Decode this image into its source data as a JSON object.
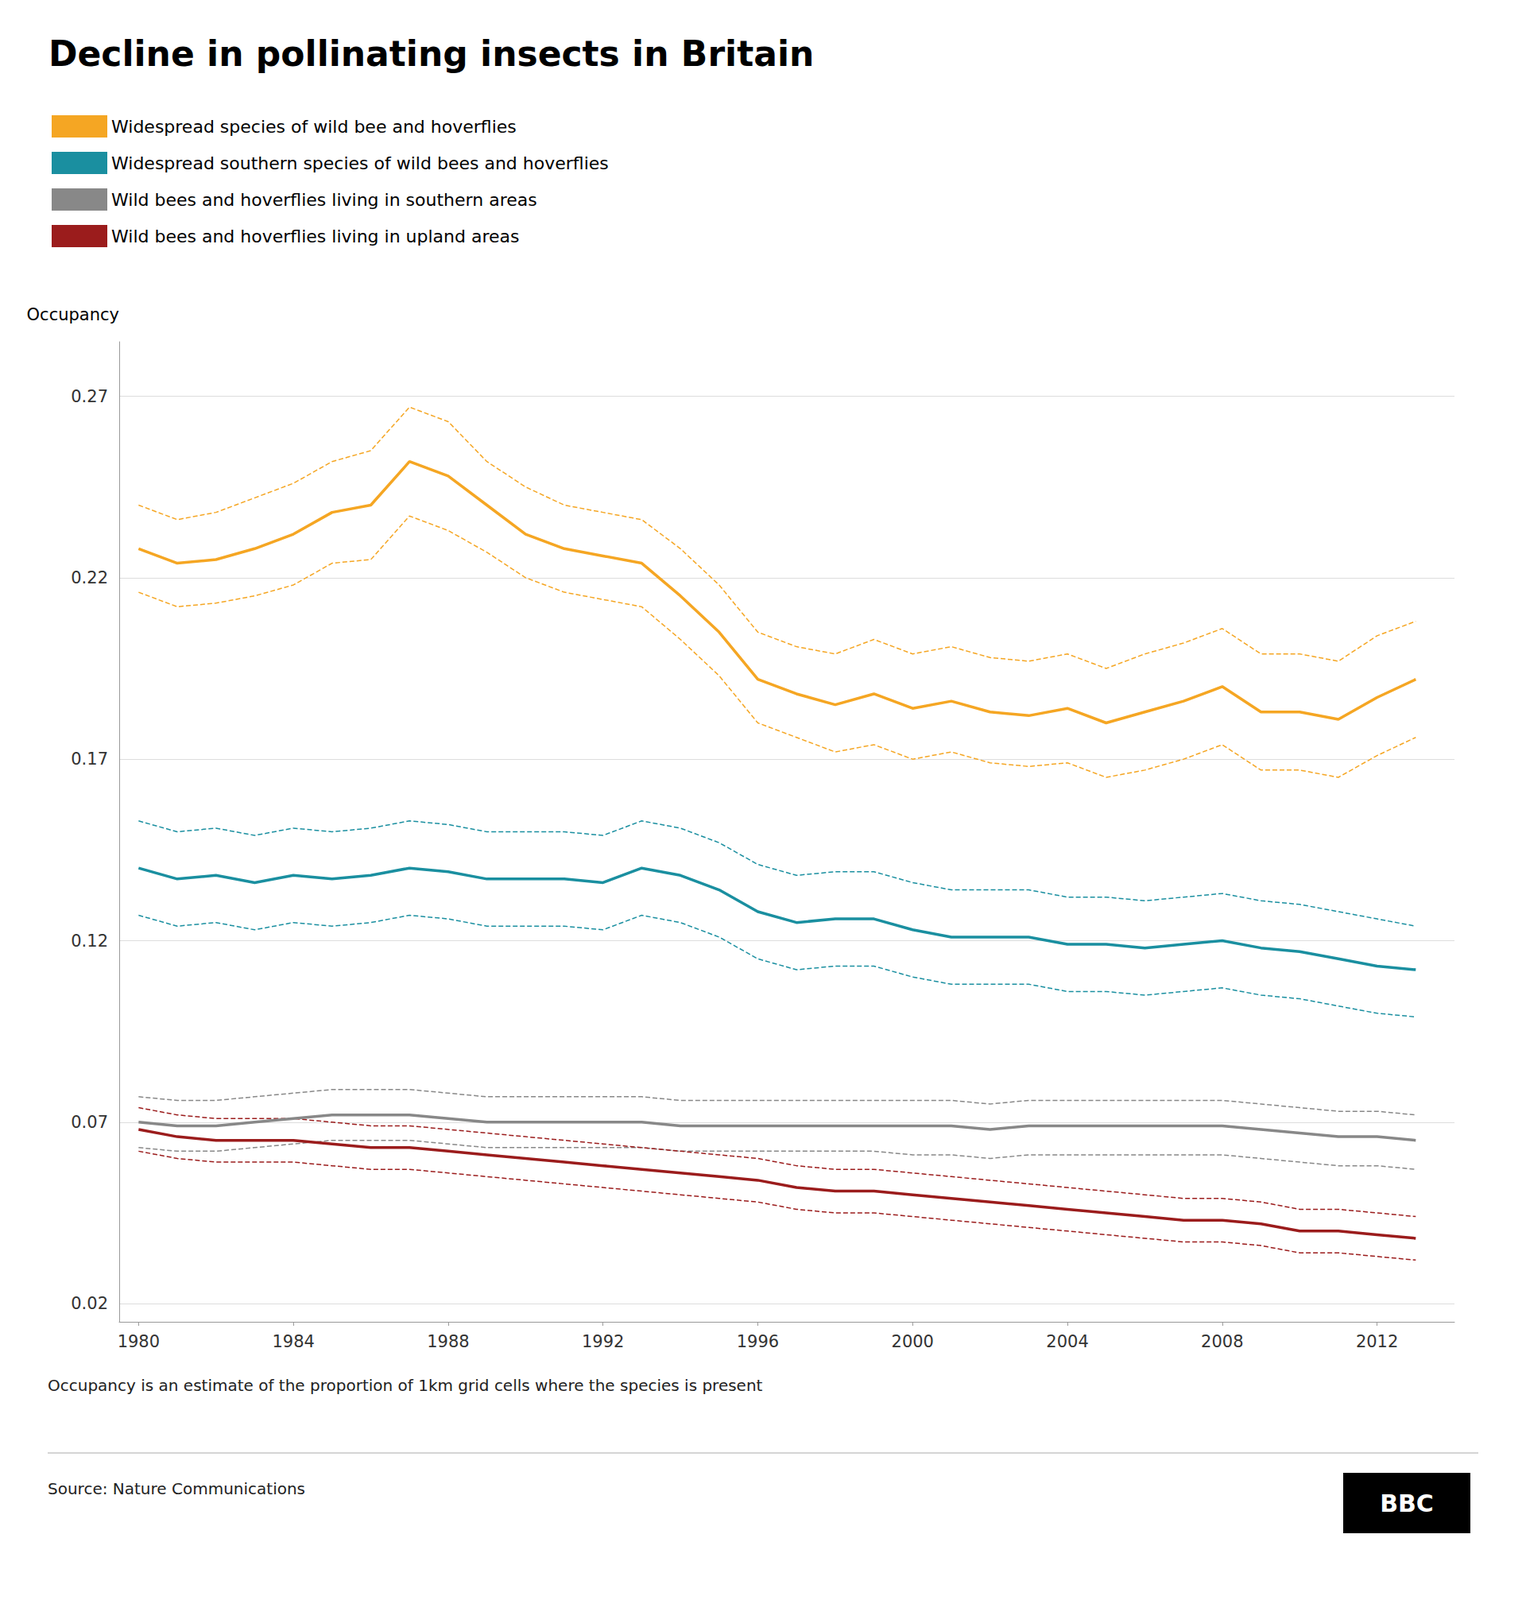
{
  "chart_data": {
    "type": "line",
    "title": "Decline in pollinating insects in Britain",
    "ylabel": "Occupancy",
    "x": [
      1980,
      1981,
      1982,
      1983,
      1984,
      1985,
      1986,
      1987,
      1988,
      1989,
      1990,
      1991,
      1992,
      1993,
      1994,
      1995,
      1996,
      1997,
      1998,
      1999,
      2000,
      2001,
      2002,
      2003,
      2004,
      2005,
      2006,
      2007,
      2008,
      2009,
      2010,
      2011,
      2012,
      2013
    ],
    "xlim": [
      1979.5,
      2014.0
    ],
    "xticks": [
      1980,
      1984,
      1988,
      1992,
      1996,
      2000,
      2004,
      2008,
      2012
    ],
    "ylim": [
      0.015,
      0.285
    ],
    "yticks": [
      0.02,
      0.07,
      0.12,
      0.17,
      0.22,
      0.27
    ],
    "grid": true,
    "legend": "top-left",
    "series": [
      {
        "name": "Widespread species of wild bee and hoverflies",
        "color": "#F5A623",
        "values": [
          0.228,
          0.224,
          0.225,
          0.228,
          0.232,
          0.238,
          0.24,
          0.252,
          0.248,
          0.24,
          0.232,
          0.228,
          0.226,
          0.224,
          0.215,
          0.205,
          0.192,
          0.188,
          0.185,
          0.188,
          0.184,
          0.186,
          0.183,
          0.182,
          0.184,
          0.18,
          0.183,
          0.186,
          0.19,
          0.183,
          0.183,
          0.181,
          0.187,
          0.192
        ],
        "upper": [
          0.24,
          0.236,
          0.238,
          0.242,
          0.246,
          0.252,
          0.255,
          0.267,
          0.263,
          0.252,
          0.245,
          0.24,
          0.238,
          0.236,
          0.228,
          0.218,
          0.205,
          0.201,
          0.199,
          0.203,
          0.199,
          0.201,
          0.198,
          0.197,
          0.199,
          0.195,
          0.199,
          0.202,
          0.206,
          0.199,
          0.199,
          0.197,
          0.204,
          0.208
        ],
        "lower": [
          0.216,
          0.212,
          0.213,
          0.215,
          0.218,
          0.224,
          0.225,
          0.237,
          0.233,
          0.227,
          0.22,
          0.216,
          0.214,
          0.212,
          0.203,
          0.193,
          0.18,
          0.176,
          0.172,
          0.174,
          0.17,
          0.172,
          0.169,
          0.168,
          0.169,
          0.165,
          0.167,
          0.17,
          0.174,
          0.167,
          0.167,
          0.165,
          0.171,
          0.176
        ]
      },
      {
        "name": "Widespread southern species of wild bees and hoverflies",
        "color": "#1A8FA0",
        "values": [
          0.14,
          0.137,
          0.138,
          0.136,
          0.138,
          0.137,
          0.138,
          0.14,
          0.139,
          0.137,
          0.137,
          0.137,
          0.136,
          0.14,
          0.138,
          0.134,
          0.128,
          0.125,
          0.126,
          0.126,
          0.123,
          0.121,
          0.121,
          0.121,
          0.119,
          0.119,
          0.118,
          0.119,
          0.12,
          0.118,
          0.117,
          0.115,
          0.113,
          0.112
        ],
        "upper": [
          0.153,
          0.15,
          0.151,
          0.149,
          0.151,
          0.15,
          0.151,
          0.153,
          0.152,
          0.15,
          0.15,
          0.15,
          0.149,
          0.153,
          0.151,
          0.147,
          0.141,
          0.138,
          0.139,
          0.139,
          0.136,
          0.134,
          0.134,
          0.134,
          0.132,
          0.132,
          0.131,
          0.132,
          0.133,
          0.131,
          0.13,
          0.128,
          0.126,
          0.124
        ],
        "lower": [
          0.127,
          0.124,
          0.125,
          0.123,
          0.125,
          0.124,
          0.125,
          0.127,
          0.126,
          0.124,
          0.124,
          0.124,
          0.123,
          0.127,
          0.125,
          0.121,
          0.115,
          0.112,
          0.113,
          0.113,
          0.11,
          0.108,
          0.108,
          0.108,
          0.106,
          0.106,
          0.105,
          0.106,
          0.107,
          0.105,
          0.104,
          0.102,
          0.1,
          0.099
        ]
      },
      {
        "name": "Wild bees and hoverflies living in southern areas",
        "color": "#888888",
        "values": [
          0.07,
          0.069,
          0.069,
          0.07,
          0.071,
          0.072,
          0.072,
          0.072,
          0.071,
          0.07,
          0.07,
          0.07,
          0.07,
          0.07,
          0.069,
          0.069,
          0.069,
          0.069,
          0.069,
          0.069,
          0.069,
          0.069,
          0.068,
          0.069,
          0.069,
          0.069,
          0.069,
          0.069,
          0.069,
          0.068,
          0.067,
          0.066,
          0.066,
          0.065
        ],
        "upper": [
          0.077,
          0.076,
          0.076,
          0.077,
          0.078,
          0.079,
          0.079,
          0.079,
          0.078,
          0.077,
          0.077,
          0.077,
          0.077,
          0.077,
          0.076,
          0.076,
          0.076,
          0.076,
          0.076,
          0.076,
          0.076,
          0.076,
          0.075,
          0.076,
          0.076,
          0.076,
          0.076,
          0.076,
          0.076,
          0.075,
          0.074,
          0.073,
          0.073,
          0.072
        ],
        "lower": [
          0.063,
          0.062,
          0.062,
          0.063,
          0.064,
          0.065,
          0.065,
          0.065,
          0.064,
          0.063,
          0.063,
          0.063,
          0.063,
          0.063,
          0.062,
          0.062,
          0.062,
          0.062,
          0.062,
          0.062,
          0.061,
          0.061,
          0.06,
          0.061,
          0.061,
          0.061,
          0.061,
          0.061,
          0.061,
          0.06,
          0.059,
          0.058,
          0.058,
          0.057
        ]
      },
      {
        "name": "Wild bees and hoverflies living in upland areas",
        "color": "#9B1C1C",
        "values": [
          0.068,
          0.066,
          0.065,
          0.065,
          0.065,
          0.064,
          0.063,
          0.063,
          0.062,
          0.061,
          0.06,
          0.059,
          0.058,
          0.057,
          0.056,
          0.055,
          0.054,
          0.052,
          0.051,
          0.051,
          0.05,
          0.049,
          0.048,
          0.047,
          0.046,
          0.045,
          0.044,
          0.043,
          0.043,
          0.042,
          0.04,
          0.04,
          0.039,
          0.038
        ],
        "upper": [
          0.074,
          0.072,
          0.071,
          0.071,
          0.071,
          0.07,
          0.069,
          0.069,
          0.068,
          0.067,
          0.066,
          0.065,
          0.064,
          0.063,
          0.062,
          0.061,
          0.06,
          0.058,
          0.057,
          0.057,
          0.056,
          0.055,
          0.054,
          0.053,
          0.052,
          0.051,
          0.05,
          0.049,
          0.049,
          0.048,
          0.046,
          0.046,
          0.045,
          0.044
        ],
        "lower": [
          0.062,
          0.06,
          0.059,
          0.059,
          0.059,
          0.058,
          0.057,
          0.057,
          0.056,
          0.055,
          0.054,
          0.053,
          0.052,
          0.051,
          0.05,
          0.049,
          0.048,
          0.046,
          0.045,
          0.045,
          0.044,
          0.043,
          0.042,
          0.041,
          0.04,
          0.039,
          0.038,
          0.037,
          0.037,
          0.036,
          0.034,
          0.034,
          0.033,
          0.032
        ]
      }
    ],
    "annotations": [
      "Occupancy is an estimate of the proportion of 1km grid cells where the species is present",
      "Source: Nature Communications",
      "BBC"
    ]
  }
}
